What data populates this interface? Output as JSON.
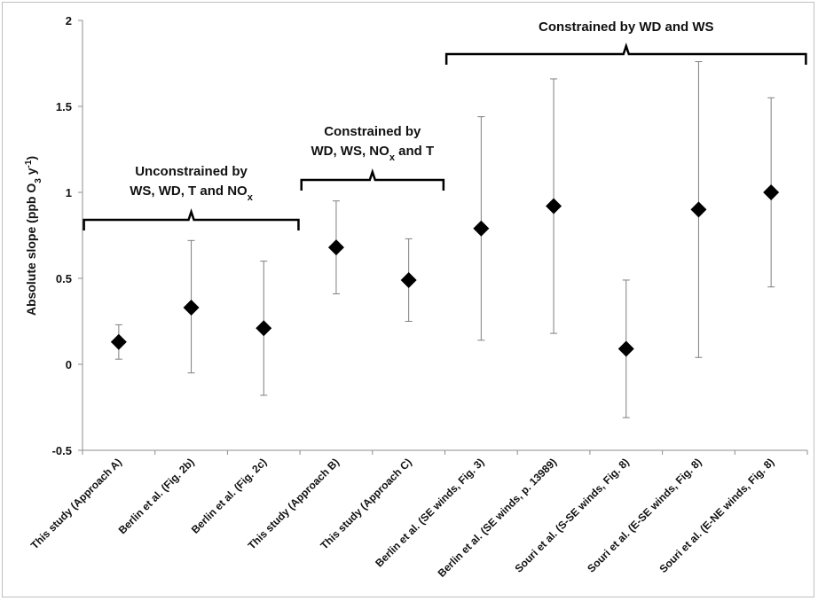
{
  "chart_data": {
    "type": "scatter",
    "ylabel": "Absolute slope (ppb O3 y-1)",
    "ylabel_parts": {
      "pre": "Absolute slope (ppb O",
      "sub": "3",
      "mid": " y",
      "sup": "-1",
      "post": ")"
    },
    "ylim": [
      -0.5,
      2
    ],
    "yticks": [
      -0.5,
      0,
      0.5,
      1,
      1.5,
      2
    ],
    "ytick_labels": [
      "-0.5",
      "0",
      "0.5",
      "1",
      "1.5",
      "2"
    ],
    "grid": false,
    "categories": [
      "This study (Approach A)",
      "Berlin et al. (Fig. 2b)",
      "Berlin et al. (Fig. 2c)",
      "This study (Approach B)",
      "This study (Approach C)",
      "Berlin et al. (SE winds, Fig. 3)",
      "Berlin et al. (SE winds, p. 13989)",
      "Souri et al. (S-SE winds, Fig. 8)",
      "Souri et al. (E-SE winds, Fig. 8)",
      "Souri et al. (E-NE winds, Fig. 8)"
    ],
    "values": [
      0.13,
      0.33,
      0.21,
      0.68,
      0.49,
      0.79,
      0.92,
      0.09,
      0.9,
      1.0
    ],
    "error_low": [
      0.03,
      -0.05,
      -0.18,
      0.41,
      0.25,
      0.14,
      0.18,
      -0.31,
      0.04,
      0.45
    ],
    "error_high": [
      0.23,
      0.72,
      0.6,
      0.95,
      0.73,
      1.44,
      1.66,
      0.49,
      1.76,
      1.55
    ],
    "groups": [
      {
        "start": 0,
        "end": 2,
        "line1": "Unconstrained by",
        "line2_pre": "WS, WD, T and NO",
        "line2_sub": "x",
        "line2_post": ""
      },
      {
        "start": 3,
        "end": 4,
        "line1": "Constrained by",
        "line2_pre": "WD, WS, NO",
        "line2_sub": "x",
        "line2_post": " and T"
      },
      {
        "start": 5,
        "end": 9,
        "line1": "Constrained by WD and WS",
        "line2_pre": "",
        "line2_sub": "",
        "line2_post": ""
      }
    ]
  }
}
